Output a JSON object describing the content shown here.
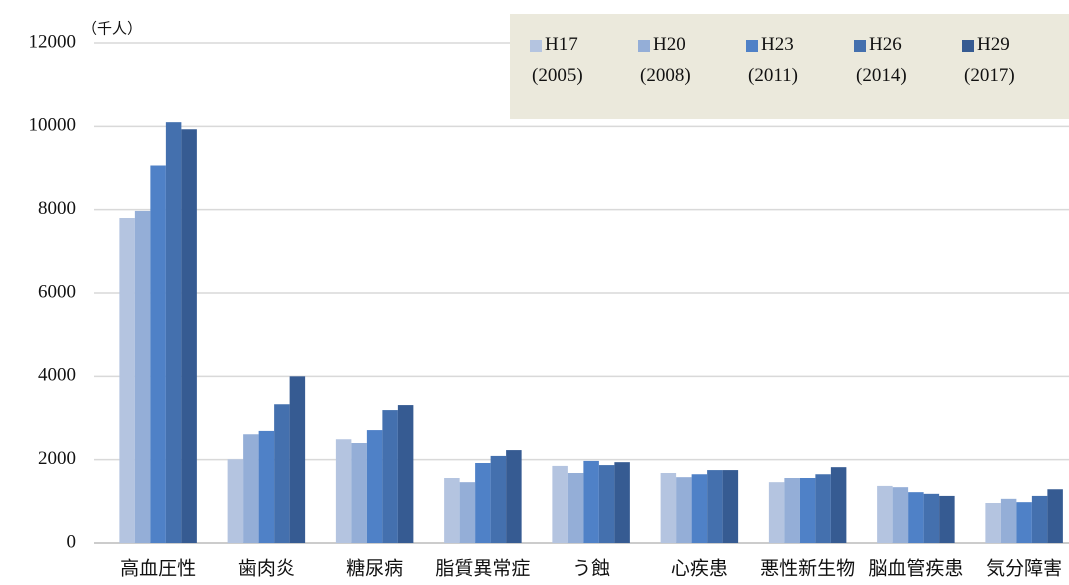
{
  "chart_data": {
    "type": "bar",
    "ylabel": "（千人）",
    "categories": [
      "高血圧性",
      "歯肉炎",
      "糖尿病",
      "脂質異常症",
      "う蝕",
      "心疾患",
      "悪性新生物",
      "脳血管疾患",
      "気分障害"
    ],
    "series": [
      {
        "name": "H17\n(2005)",
        "color": "#b4c4e0",
        "values": [
          7800,
          2010,
          2490,
          1560,
          1850,
          1680,
          1460,
          1370,
          960
        ]
      },
      {
        "name": "H20\n(2008)",
        "color": "#94aed7",
        "values": [
          7970,
          2610,
          2400,
          1460,
          1680,
          1580,
          1560,
          1340,
          1060
        ]
      },
      {
        "name": "H23\n(2011)",
        "color": "#4f81c7",
        "values": [
          9060,
          2690,
          2710,
          1920,
          1970,
          1650,
          1560,
          1220,
          980
        ]
      },
      {
        "name": "H26\n(2014)",
        "color": "#4470ae",
        "values": [
          10100,
          3330,
          3190,
          2090,
          1870,
          1750,
          1650,
          1180,
          1130
        ]
      },
      {
        "name": "H29\n(2017)",
        "color": "#365b92",
        "values": [
          9930,
          4000,
          3310,
          2230,
          1940,
          1750,
          1820,
          1130,
          1290
        ]
      }
    ],
    "ylim": [
      0,
      12000
    ],
    "yticks": [
      0,
      2000,
      4000,
      6000,
      8000,
      10000,
      12000
    ],
    "grid": true,
    "legend": "top-right"
  }
}
